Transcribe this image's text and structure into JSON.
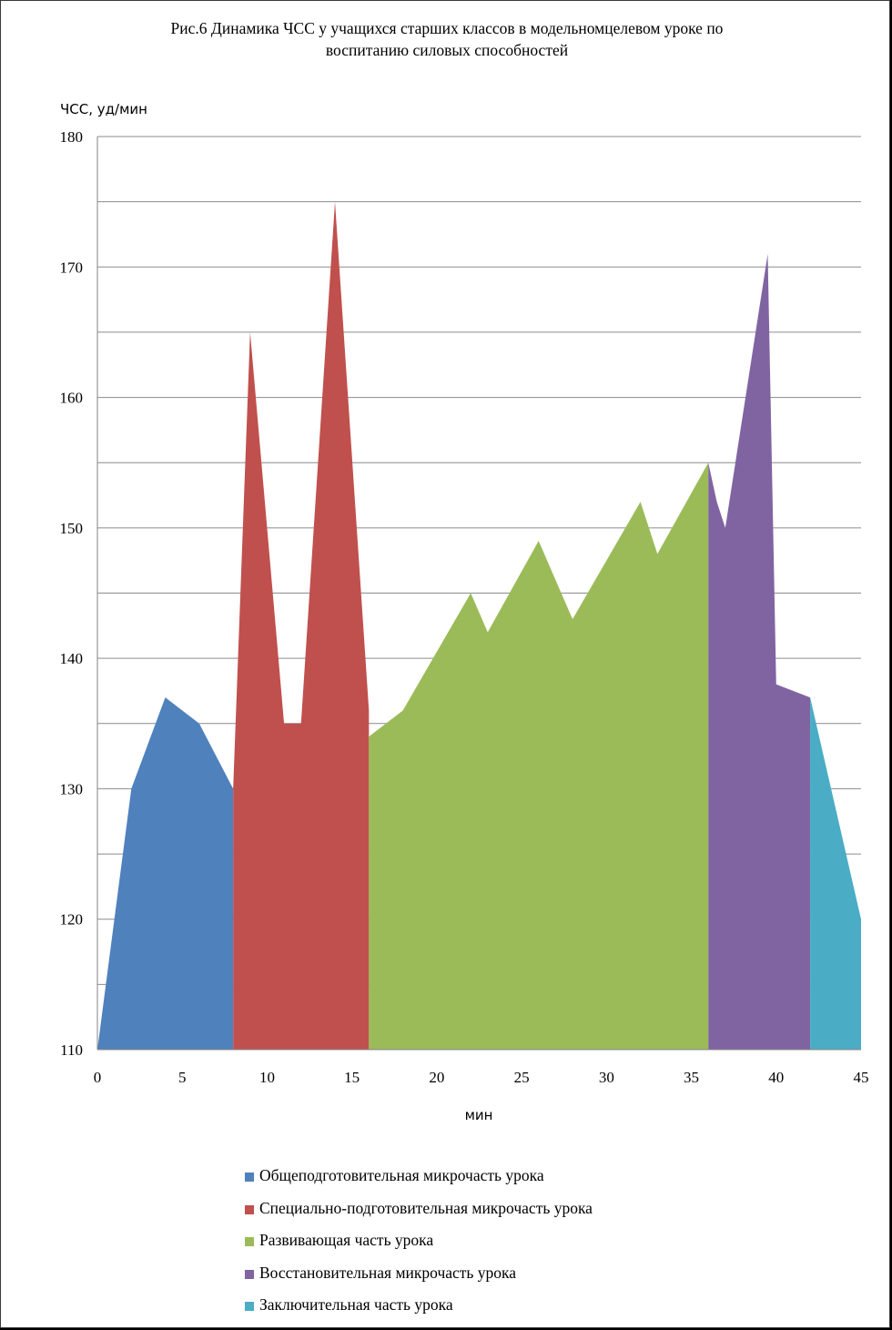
{
  "chart_data": {
    "type": "area",
    "title": "Рис.6 Динамика ЧСС у учащихся старших классов в модельномцелевом уроке по воспитанию силовых способностей",
    "title_lines": [
      "Рис.6 Динамика ЧСС у учащихся старших классов в модельномцелевом уроке по",
      "воспитанию силовых способностей"
    ],
    "xlabel": "мин",
    "ylabel": "ЧСС, уд/мин",
    "xlim": [
      0,
      45
    ],
    "ylim": [
      110,
      180
    ],
    "x_ticks": [
      0,
      5,
      10,
      15,
      20,
      25,
      30,
      35,
      40,
      45
    ],
    "y_ticks": [
      110,
      120,
      130,
      140,
      150,
      160,
      170,
      180
    ],
    "y_gridlines_minor": true,
    "legend_position": "bottom",
    "series": [
      {
        "name": "Общеподготовительная микрочасть урока",
        "color": "#4f81bd",
        "x": [
          0,
          2,
          4,
          6,
          8
        ],
        "y": [
          110,
          130,
          137,
          135,
          130
        ]
      },
      {
        "name": "Специально-подготовительная микрочасть урока",
        "color": "#c0504d",
        "x": [
          8,
          9,
          11,
          12,
          14,
          16
        ],
        "y": [
          130,
          165,
          135,
          135,
          175,
          136
        ]
      },
      {
        "name": "Развивающая часть урока",
        "color": "#9bbb59",
        "x": [
          16,
          18,
          22,
          23,
          26,
          28,
          32,
          33,
          36
        ],
        "y": [
          134,
          136,
          145,
          142,
          149,
          143,
          152,
          148,
          155
        ]
      },
      {
        "name": "Восстановительная микрочасть урока",
        "color": "#8064a2",
        "x": [
          36,
          36.5,
          37,
          39.5,
          40,
          42
        ],
        "y": [
          155,
          152,
          150,
          171,
          138,
          137
        ]
      },
      {
        "name": "Заключительная часть урока",
        "color": "#4bacc6",
        "x": [
          42,
          45
        ],
        "y": [
          137,
          120
        ]
      }
    ]
  }
}
